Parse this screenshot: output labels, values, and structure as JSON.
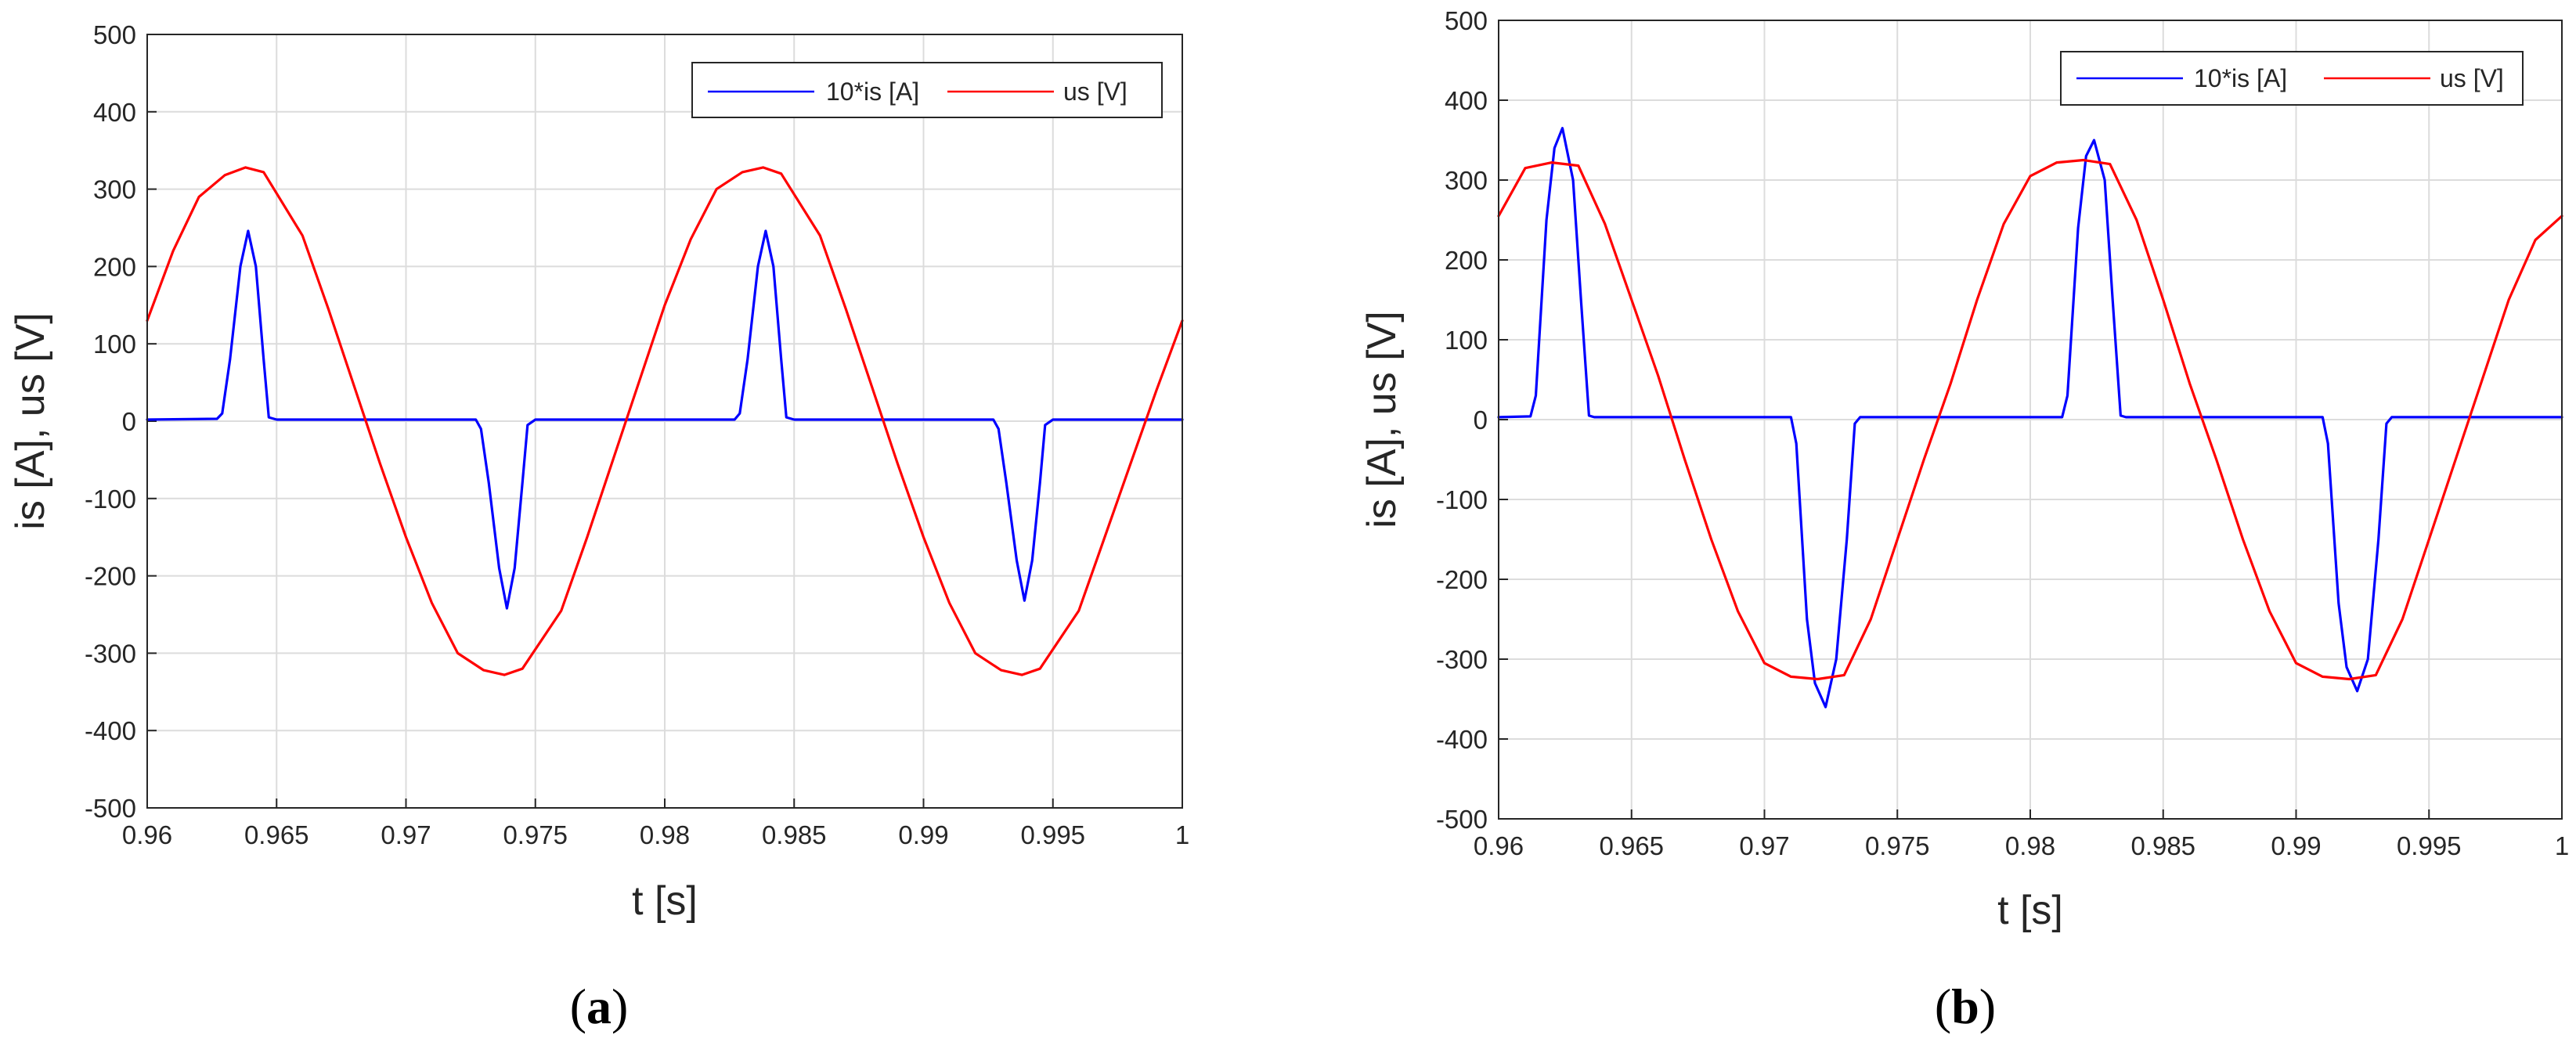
{
  "chart_data": [
    {
      "type": "line",
      "panel_label": {
        "open": "(",
        "letter": "a",
        "close": ")"
      },
      "xlabel": "t [s]",
      "ylabel": "is [A], us [V]",
      "xlim": [
        0.96,
        1.0
      ],
      "ylim": [
        -500,
        500
      ],
      "grid": true,
      "legend_position": "top-right",
      "x_ticks": [
        {
          "value": 0.96,
          "label": "0.96"
        },
        {
          "value": 0.965,
          "label": "0.965"
        },
        {
          "value": 0.97,
          "label": "0.97"
        },
        {
          "value": 0.975,
          "label": "0.975"
        },
        {
          "value": 0.98,
          "label": "0.98"
        },
        {
          "value": 0.985,
          "label": "0.985"
        },
        {
          "value": 0.99,
          "label": "0.99"
        },
        {
          "value": 0.995,
          "label": "0.995"
        },
        {
          "value": 1.0,
          "label": "1"
        }
      ],
      "y_ticks": [
        {
          "value": 500,
          "label": "500"
        },
        {
          "value": 400,
          "label": "400"
        },
        {
          "value": 300,
          "label": "300"
        },
        {
          "value": 200,
          "label": "200"
        },
        {
          "value": 100,
          "label": "100"
        },
        {
          "value": 0,
          "label": "0"
        },
        {
          "value": -100,
          "label": "-100"
        },
        {
          "value": -200,
          "label": "-200"
        },
        {
          "value": -300,
          "label": "-300"
        },
        {
          "value": -400,
          "label": "-400"
        },
        {
          "value": -500,
          "label": "-500"
        }
      ],
      "series": [
        {
          "name": "10*is [A]",
          "color": "#0000ff",
          "x": [
            0.96,
            0.9627,
            0.9629,
            0.9632,
            0.9636,
            0.9639,
            0.9642,
            0.9645,
            0.9647,
            0.965,
            0.9727,
            0.9729,
            0.9732,
            0.9736,
            0.9739,
            0.9742,
            0.9745,
            0.9747,
            0.975,
            0.9827,
            0.9829,
            0.9832,
            0.9836,
            0.9839,
            0.9842,
            0.9845,
            0.9847,
            0.985,
            0.9927,
            0.9929,
            0.9932,
            0.9936,
            0.9939,
            0.9942,
            0.9945,
            0.9947,
            0.995,
            1.0
          ],
          "values": [
            2,
            3,
            10,
            80,
            200,
            246,
            200,
            80,
            5,
            2,
            2,
            -10,
            -80,
            -190,
            -242,
            -190,
            -80,
            -5,
            2,
            2,
            10,
            80,
            200,
            246,
            200,
            80,
            5,
            2,
            2,
            -10,
            -80,
            -180,
            -232,
            -180,
            -80,
            -5,
            2,
            2
          ]
        },
        {
          "name": "us [V]",
          "color": "#ff0000",
          "x": [
            0.96,
            0.961,
            0.962,
            0.963,
            0.9638,
            0.9645,
            0.966,
            0.967,
            0.968,
            0.969,
            0.97,
            0.971,
            0.972,
            0.973,
            0.9738,
            0.9745,
            0.976,
            0.977,
            0.978,
            0.979,
            0.98,
            0.981,
            0.982,
            0.983,
            0.9838,
            0.9845,
            0.986,
            0.987,
            0.988,
            0.989,
            0.99,
            0.991,
            0.992,
            0.993,
            0.9938,
            0.9945,
            0.996,
            0.997,
            0.998,
            0.999,
            1.0
          ],
          "values": [
            130,
            220,
            290,
            318,
            328,
            322,
            240,
            145,
            45,
            -55,
            -150,
            -235,
            -300,
            -322,
            -328,
            -320,
            -245,
            -150,
            -50,
            50,
            150,
            235,
            300,
            322,
            328,
            320,
            240,
            145,
            45,
            -55,
            -150,
            -235,
            -300,
            -322,
            -328,
            -320,
            -245,
            -150,
            -55,
            40,
            130
          ]
        }
      ]
    },
    {
      "type": "line",
      "panel_label": {
        "open": "(",
        "letter": "b",
        "close": ")"
      },
      "xlabel": "t [s]",
      "ylabel": "is [A], us [V]",
      "xlim": [
        0.96,
        1.0
      ],
      "ylim": [
        -500,
        500
      ],
      "grid": true,
      "legend_position": "top-right",
      "x_ticks": [
        {
          "value": 0.96,
          "label": "0.96"
        },
        {
          "value": 0.965,
          "label": "0.965"
        },
        {
          "value": 0.97,
          "label": "0.97"
        },
        {
          "value": 0.975,
          "label": "0.975"
        },
        {
          "value": 0.98,
          "label": "0.98"
        },
        {
          "value": 0.985,
          "label": "0.985"
        },
        {
          "value": 0.99,
          "label": "0.99"
        },
        {
          "value": 0.995,
          "label": "0.995"
        },
        {
          "value": 1.0,
          "label": "1"
        }
      ],
      "y_ticks": [
        {
          "value": 500,
          "label": "500"
        },
        {
          "value": 400,
          "label": "400"
        },
        {
          "value": 300,
          "label": "300"
        },
        {
          "value": 200,
          "label": "200"
        },
        {
          "value": 100,
          "label": "100"
        },
        {
          "value": 0,
          "label": "0"
        },
        {
          "value": -100,
          "label": "-100"
        },
        {
          "value": -200,
          "label": "-200"
        },
        {
          "value": -300,
          "label": "-300"
        },
        {
          "value": -400,
          "label": "-400"
        },
        {
          "value": -500,
          "label": "-500"
        }
      ],
      "series": [
        {
          "name": "10*is [A]",
          "color": "#0000ff",
          "x": [
            0.96,
            0.9612,
            0.9614,
            0.9618,
            0.9621,
            0.9624,
            0.9628,
            0.9631,
            0.9634,
            0.9636,
            0.971,
            0.9712,
            0.9716,
            0.9719,
            0.9723,
            0.9727,
            0.9731,
            0.9734,
            0.9736,
            0.9812,
            0.9814,
            0.9818,
            0.9821,
            0.9824,
            0.9828,
            0.9831,
            0.9834,
            0.9836,
            0.991,
            0.9912,
            0.9916,
            0.9919,
            0.9923,
            0.9927,
            0.9931,
            0.9934,
            0.9936,
            1.0
          ],
          "values": [
            3,
            4,
            30,
            250,
            340,
            365,
            300,
            150,
            5,
            3,
            3,
            -30,
            -250,
            -330,
            -360,
            -300,
            -150,
            -5,
            3,
            3,
            30,
            240,
            330,
            350,
            300,
            150,
            5,
            3,
            3,
            -30,
            -230,
            -310,
            -340,
            -300,
            -150,
            -5,
            3,
            3
          ]
        },
        {
          "name": "us [V]",
          "color": "#ff0000",
          "x": [
            0.96,
            0.961,
            0.962,
            0.963,
            0.964,
            0.965,
            0.966,
            0.967,
            0.968,
            0.969,
            0.97,
            0.971,
            0.972,
            0.973,
            0.974,
            0.975,
            0.976,
            0.977,
            0.978,
            0.979,
            0.98,
            0.981,
            0.982,
            0.983,
            0.984,
            0.985,
            0.986,
            0.987,
            0.988,
            0.989,
            0.99,
            0.991,
            0.992,
            0.993,
            0.994,
            0.995,
            0.996,
            0.997,
            0.998,
            0.999,
            1.0
          ],
          "values": [
            255,
            315,
            322,
            318,
            245,
            150,
            55,
            -50,
            -150,
            -240,
            -305,
            -322,
            -325,
            -320,
            -250,
            -150,
            -50,
            45,
            150,
            245,
            305,
            322,
            325,
            320,
            250,
            150,
            45,
            -50,
            -150,
            -240,
            -305,
            -322,
            -325,
            -320,
            -250,
            -150,
            -50,
            50,
            150,
            225,
            255
          ]
        }
      ]
    }
  ]
}
